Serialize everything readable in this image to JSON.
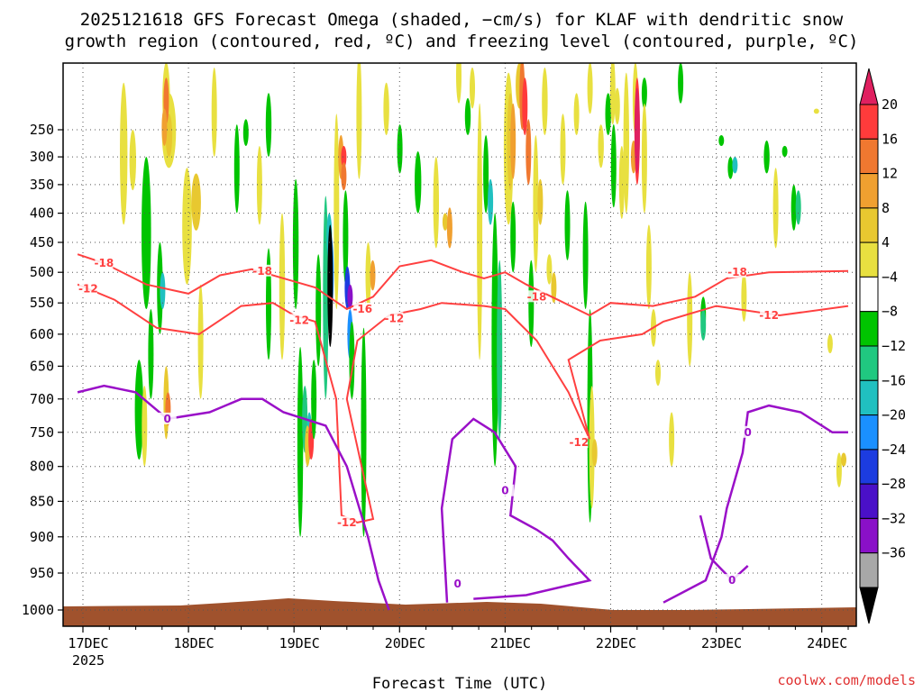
{
  "chart_data": {
    "type": "heatmap",
    "title_line1": "2025121618 GFS Forecast Omega (shaded, −cm/s) for KLAF with dendritic snow",
    "title_line2": "growth region (contoured, red, ºC) and freezing level (contoured, purple, ºC)",
    "xlabel": "Forecast Time (UTC)",
    "credit": "coolwx.com/models",
    "x_start_label_year": "2025",
    "x_ticks": [
      {
        "label": "17DEC",
        "day": 0
      },
      {
        "label": "18DEC",
        "day": 1
      },
      {
        "label": "19DEC",
        "day": 2
      },
      {
        "label": "20DEC",
        "day": 3
      },
      {
        "label": "21DEC",
        "day": 4
      },
      {
        "label": "22DEC",
        "day": 5
      },
      {
        "label": "23DEC",
        "day": 6
      },
      {
        "label": "24DEC",
        "day": 7
      }
    ],
    "x_range_days": [
      -0.05,
      7.25
    ],
    "y_ticks_hpa": [
      250,
      300,
      350,
      400,
      450,
      500,
      550,
      600,
      650,
      700,
      750,
      800,
      850,
      900,
      950,
      1000
    ],
    "y_range_hpa": [
      200,
      1015
    ],
    "colorbar": {
      "labels": [
        "20",
        "16",
        "12",
        "8",
        "4",
        "−4",
        "−8",
        "−12",
        "−16",
        "−20",
        "−24",
        "−28",
        "−32",
        "−36"
      ],
      "colors": [
        "#e02060",
        "#ff3b3b",
        "#f07830",
        "#f0a030",
        "#e8c830",
        "#e8e040",
        "#ffffff",
        "#00c400",
        "#20c880",
        "#20c0c0",
        "#1a90ff",
        "#1c3ce0",
        "#4a10c8",
        "#8a10c8",
        "#a8a8a8",
        "#000000"
      ]
    },
    "ground_color": "#a0522d",
    "contour_colors": {
      "dgz": "#ff4040",
      "freezing": "#9a10c8"
    },
    "contour_labels": {
      "dgz_upper": "-18",
      "dgz_lower": "-12",
      "dgz_mid_upper": "-16",
      "freezing": "0"
    },
    "dgz_upper": [
      [
        -0.05,
        470
      ],
      [
        0.2,
        485
      ],
      [
        0.6,
        520
      ],
      [
        1.0,
        535
      ],
      [
        1.3,
        505
      ],
      [
        1.6,
        495
      ],
      [
        1.9,
        510
      ],
      [
        2.2,
        525
      ],
      [
        2.5,
        560
      ],
      [
        2.75,
        540
      ],
      [
        3.0,
        490
      ],
      [
        3.3,
        480
      ],
      [
        3.6,
        500
      ],
      [
        3.8,
        510
      ],
      [
        4.0,
        500
      ],
      [
        4.2,
        520
      ],
      [
        4.5,
        545
      ],
      [
        4.8,
        570
      ],
      [
        5.0,
        550
      ],
      [
        5.4,
        555
      ],
      [
        5.8,
        540
      ],
      [
        6.1,
        510
      ],
      [
        6.5,
        500
      ],
      [
        7.25,
        498
      ]
    ],
    "dgz_lower": [
      [
        -0.05,
        520
      ],
      [
        0.3,
        545
      ],
      [
        0.7,
        590
      ],
      [
        1.1,
        600
      ],
      [
        1.5,
        555
      ],
      [
        1.8,
        550
      ],
      [
        2.0,
        570
      ],
      [
        2.2,
        580
      ],
      [
        2.4,
        700
      ],
      [
        2.45,
        870
      ],
      [
        2.6,
        880
      ],
      [
        2.75,
        875
      ],
      [
        2.5,
        700
      ],
      [
        2.6,
        610
      ],
      [
        2.9,
        570
      ],
      [
        3.2,
        560
      ],
      [
        3.4,
        550
      ],
      [
        3.8,
        555
      ],
      [
        4.0,
        560
      ],
      [
        4.3,
        610
      ],
      [
        4.6,
        690
      ],
      [
        4.8,
        760
      ],
      [
        4.6,
        640
      ],
      [
        4.9,
        610
      ],
      [
        5.3,
        600
      ],
      [
        5.5,
        580
      ],
      [
        6.0,
        555
      ],
      [
        6.6,
        570
      ],
      [
        7.25,
        555
      ]
    ],
    "freezing_segments": [
      [
        [
          -0.05,
          690
        ],
        [
          0.2,
          680
        ],
        [
          0.5,
          690
        ],
        [
          0.8,
          730
        ],
        [
          1.2,
          720
        ],
        [
          1.5,
          700
        ],
        [
          1.7,
          700
        ],
        [
          1.9,
          720
        ],
        [
          2.3,
          740
        ],
        [
          2.5,
          800
        ],
        [
          2.7,
          900
        ],
        [
          2.8,
          960
        ],
        [
          2.9,
          1000
        ]
      ],
      [
        [
          3.45,
          990
        ],
        [
          3.4,
          860
        ],
        [
          3.5,
          760
        ],
        [
          3.7,
          730
        ],
        [
          3.9,
          750
        ],
        [
          4.1,
          800
        ],
        [
          4.05,
          870
        ],
        [
          4.3,
          890
        ],
        [
          4.45,
          905
        ],
        [
          4.6,
          930
        ],
        [
          4.8,
          960
        ],
        [
          4.2,
          980
        ],
        [
          3.7,
          985
        ]
      ],
      [
        [
          5.5,
          990
        ],
        [
          5.9,
          960
        ],
        [
          6.05,
          900
        ],
        [
          6.1,
          860
        ],
        [
          6.25,
          780
        ],
        [
          6.3,
          720
        ],
        [
          6.5,
          710
        ],
        [
          6.8,
          720
        ],
        [
          7.1,
          750
        ],
        [
          7.25,
          750
        ]
      ],
      [
        [
          5.85,
          870
        ],
        [
          5.95,
          930
        ],
        [
          6.15,
          960
        ],
        [
          6.3,
          940
        ]
      ]
    ]
  }
}
